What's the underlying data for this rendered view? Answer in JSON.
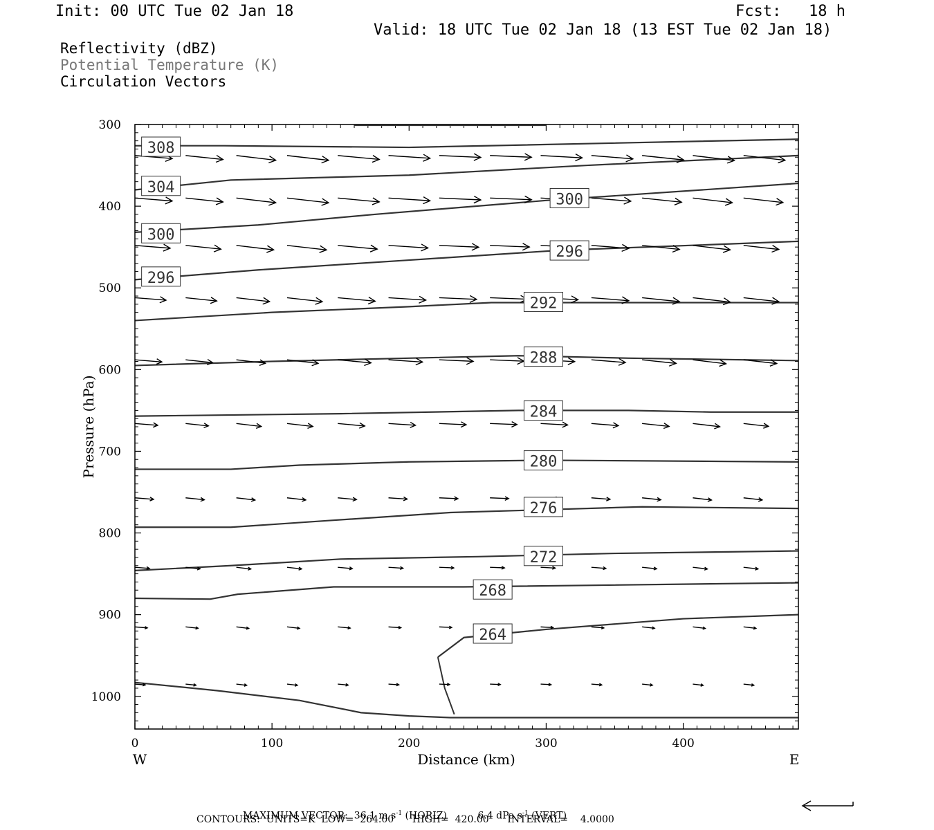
{
  "header": {
    "init": "Init: 00 UTC Tue 02 Jan 18",
    "fcst": "Fcst:   18 h",
    "valid": "Valid: 18 UTC Tue 02 Jan 18 (13 EST Tue 02 Jan 18)"
  },
  "legend": {
    "line1": "Reflectivity (dBZ)",
    "line2": "Potential Temperature (K)",
    "line3": "Circulation Vectors",
    "line2_color": "#777777"
  },
  "footer": {
    "max_vector_prefix": "MAXIMUM VECTOR:  36.1 m s",
    "max_vector_mid": " (HORIZ)          6.4 dPa s",
    "max_vector_suffix": " (VERT)",
    "superscript": "-1",
    "contours": "CONTOURS:  UNITS=K  LOW=  264.00      HIGH=  420.00      INTERVAL=    4.0000"
  },
  "chart_data": {
    "type": "line",
    "title": "",
    "xlabel": "Distance (km)",
    "ylabel": "Pressure (hPa)",
    "xlim": [
      0,
      484
    ],
    "ylim": [
      300,
      1040
    ],
    "y_inverted": true,
    "x_ticks": [
      0,
      100,
      200,
      300,
      400
    ],
    "y_ticks": [
      300,
      400,
      500,
      600,
      700,
      800,
      900,
      1000
    ],
    "x_end_labels": {
      "left": "W",
      "right": "E"
    },
    "grid": false,
    "series": [
      {
        "name": "308",
        "label_at": [
          19,
          328
        ],
        "points": [
          [
            0,
            326
          ],
          [
            65,
            326
          ],
          [
            200,
            328
          ],
          [
            484,
            318
          ]
        ]
      },
      {
        "name": "304",
        "label_at": [
          19,
          376
        ],
        "points": [
          [
            0,
            380
          ],
          [
            70,
            368
          ],
          [
            200,
            362
          ],
          [
            330,
            350
          ],
          [
            484,
            338
          ]
        ]
      },
      {
        "name": "300",
        "label_at": [
          19,
          434
        ],
        "points": [
          [
            0,
            432
          ],
          [
            90,
            423
          ],
          [
            175,
            410
          ],
          [
            300,
            393
          ],
          [
            484,
            372
          ]
        ]
      },
      {
        "name": "300",
        "label_at": [
          317,
          391
        ],
        "points": []
      },
      {
        "name": "296",
        "label_at": [
          19,
          487
        ],
        "points": [
          [
            0,
            490
          ],
          [
            90,
            478
          ],
          [
            200,
            466
          ],
          [
            310,
            454
          ],
          [
            484,
            443
          ]
        ]
      },
      {
        "name": "296",
        "label_at": [
          317,
          455
        ],
        "points": []
      },
      {
        "name": "292",
        "label_at": [
          298,
          518
        ],
        "points": [
          [
            0,
            540
          ],
          [
            100,
            530
          ],
          [
            200,
            523
          ],
          [
            260,
            518
          ],
          [
            320,
            518
          ],
          [
            484,
            518
          ]
        ]
      },
      {
        "name": "288",
        "label_at": [
          298,
          585
        ],
        "points": [
          [
            0,
            595
          ],
          [
            100,
            590
          ],
          [
            200,
            586
          ],
          [
            280,
            583
          ],
          [
            360,
            586
          ],
          [
            484,
            589
          ]
        ]
      },
      {
        "name": "284",
        "label_at": [
          298,
          651
        ],
        "points": [
          [
            0,
            657
          ],
          [
            150,
            654
          ],
          [
            280,
            650
          ],
          [
            360,
            650
          ],
          [
            420,
            652
          ],
          [
            484,
            652
          ]
        ]
      },
      {
        "name": "280",
        "label_at": [
          298,
          712
        ],
        "points": [
          [
            0,
            722
          ],
          [
            70,
            722
          ],
          [
            120,
            717
          ],
          [
            200,
            713
          ],
          [
            300,
            711
          ],
          [
            484,
            713
          ]
        ]
      },
      {
        "name": "276",
        "label_at": [
          298,
          769
        ],
        "points": [
          [
            0,
            793
          ],
          [
            70,
            793
          ],
          [
            140,
            785
          ],
          [
            230,
            775
          ],
          [
            370,
            768
          ],
          [
            484,
            770
          ]
        ]
      },
      {
        "name": "272",
        "label_at": [
          298,
          829
        ],
        "points": [
          [
            0,
            846
          ],
          [
            70,
            840
          ],
          [
            150,
            832
          ],
          [
            250,
            829
          ],
          [
            350,
            825
          ],
          [
            484,
            822
          ]
        ]
      },
      {
        "name": "268",
        "label_at": [
          261,
          870
        ],
        "points": [
          [
            0,
            880
          ],
          [
            55,
            881
          ],
          [
            75,
            875
          ],
          [
            145,
            866
          ],
          [
            240,
            866
          ],
          [
            484,
            861
          ]
        ]
      },
      {
        "name": "264",
        "label_at": [
          261,
          924
        ],
        "points": [
          [
            221,
            952
          ],
          [
            240,
            928
          ],
          [
            300,
            918
          ],
          [
            400,
            905
          ],
          [
            484,
            900
          ]
        ],
        "hook": [
          [
            221,
            952
          ],
          [
            226,
            990
          ],
          [
            233,
            1022
          ]
        ]
      },
      {
        "name": "",
        "points": [
          [
            0,
            983
          ],
          [
            60,
            993
          ],
          [
            120,
            1005
          ],
          [
            165,
            1020
          ],
          [
            200,
            1024
          ],
          [
            230,
            1026
          ],
          [
            484,
            1026
          ]
        ]
      }
    ],
    "vectors": [
      {
        "pressure": 338,
        "u": [
          [
            0,
            0.9
          ],
          [
            37,
            0.9
          ],
          [
            74,
            0.95
          ],
          [
            111,
            1.0
          ],
          [
            148,
            1.0
          ],
          [
            185,
            1.0
          ],
          [
            222,
            1.0
          ],
          [
            259,
            1.0
          ],
          [
            296,
            1.0
          ],
          [
            333,
            1.0
          ],
          [
            370,
            1.0
          ],
          [
            407,
            1.0
          ],
          [
            444,
            1.0
          ]
        ]
      },
      {
        "pressure": 390,
        "u": [
          [
            0,
            0.9
          ],
          [
            37,
            0.9
          ],
          [
            74,
            0.95
          ],
          [
            111,
            1.0
          ],
          [
            148,
            1.0
          ],
          [
            185,
            1.0
          ],
          [
            222,
            1.0
          ],
          [
            259,
            1.0
          ],
          [
            296,
            0.95
          ],
          [
            333,
            0.95
          ],
          [
            370,
            0.95
          ],
          [
            407,
            0.95
          ],
          [
            444,
            0.95
          ]
        ]
      },
      {
        "pressure": 448,
        "u": [
          [
            0,
            0.85
          ],
          [
            37,
            0.85
          ],
          [
            74,
            0.9
          ],
          [
            111,
            0.95
          ],
          [
            148,
            0.95
          ],
          [
            185,
            0.95
          ],
          [
            222,
            0.95
          ],
          [
            259,
            0.95
          ],
          [
            296,
            0.9
          ],
          [
            333,
            0.9
          ],
          [
            370,
            0.9
          ],
          [
            407,
            0.9
          ],
          [
            444,
            0.85
          ]
        ]
      },
      {
        "pressure": 512,
        "u": [
          [
            0,
            0.75
          ],
          [
            37,
            0.75
          ],
          [
            74,
            0.8
          ],
          [
            111,
            0.85
          ],
          [
            148,
            0.9
          ],
          [
            185,
            0.9
          ],
          [
            222,
            0.9
          ],
          [
            259,
            0.9
          ],
          [
            296,
            0.9
          ],
          [
            333,
            0.9
          ],
          [
            370,
            0.9
          ],
          [
            407,
            0.9
          ],
          [
            444,
            0.85
          ]
        ]
      },
      {
        "pressure": 588,
        "u": [
          [
            0,
            0.65
          ],
          [
            37,
            0.65
          ],
          [
            74,
            0.7
          ],
          [
            111,
            0.75
          ],
          [
            148,
            0.8
          ],
          [
            185,
            0.82
          ],
          [
            222,
            0.82
          ],
          [
            259,
            0.82
          ],
          [
            296,
            0.82
          ],
          [
            333,
            0.82
          ],
          [
            370,
            0.82
          ],
          [
            407,
            0.8
          ],
          [
            444,
            0.8
          ]
        ]
      },
      {
        "pressure": 666,
        "u": [
          [
            0,
            0.55
          ],
          [
            37,
            0.55
          ],
          [
            74,
            0.6
          ],
          [
            111,
            0.62
          ],
          [
            148,
            0.65
          ],
          [
            185,
            0.65
          ],
          [
            222,
            0.65
          ],
          [
            259,
            0.65
          ],
          [
            296,
            0.65
          ],
          [
            333,
            0.65
          ],
          [
            370,
            0.65
          ],
          [
            407,
            0.65
          ],
          [
            444,
            0.6
          ]
        ]
      },
      {
        "pressure": 757,
        "u": [
          [
            0,
            0.45
          ],
          [
            37,
            0.45
          ],
          [
            74,
            0.45
          ],
          [
            111,
            0.45
          ],
          [
            148,
            0.45
          ],
          [
            185,
            0.45
          ],
          [
            222,
            0.45
          ],
          [
            259,
            0.45
          ],
          [
            296,
            0.45
          ],
          [
            333,
            0.45
          ],
          [
            370,
            0.45
          ],
          [
            407,
            0.45
          ],
          [
            444,
            0.45
          ]
        ]
      },
      {
        "pressure": 842,
        "u": [
          [
            0,
            0.35
          ],
          [
            37,
            0.35
          ],
          [
            74,
            0.35
          ],
          [
            111,
            0.35
          ],
          [
            148,
            0.35
          ],
          [
            185,
            0.35
          ],
          [
            222,
            0.35
          ],
          [
            259,
            0.35
          ],
          [
            296,
            0.35
          ],
          [
            333,
            0.35
          ],
          [
            370,
            0.35
          ],
          [
            407,
            0.35
          ],
          [
            444,
            0.35
          ]
        ]
      },
      {
        "pressure": 915,
        "u": [
          [
            0,
            0.3
          ],
          [
            37,
            0.3
          ],
          [
            74,
            0.3
          ],
          [
            111,
            0.3
          ],
          [
            148,
            0.3
          ],
          [
            185,
            0.3
          ],
          [
            222,
            0.3
          ],
          [
            259,
            0.3
          ],
          [
            296,
            0.3
          ],
          [
            333,
            0.3
          ],
          [
            370,
            0.3
          ],
          [
            407,
            0.3
          ],
          [
            444,
            0.3
          ]
        ]
      },
      {
        "pressure": 985,
        "u": [
          [
            0,
            0.25
          ],
          [
            37,
            0.25
          ],
          [
            74,
            0.25
          ],
          [
            111,
            0.25
          ],
          [
            148,
            0.25
          ],
          [
            185,
            0.25
          ],
          [
            222,
            0.25
          ],
          [
            259,
            0.25
          ],
          [
            296,
            0.25
          ],
          [
            333,
            0.25
          ],
          [
            370,
            0.25
          ],
          [
            407,
            0.25
          ],
          [
            444,
            0.25
          ]
        ]
      }
    ]
  }
}
